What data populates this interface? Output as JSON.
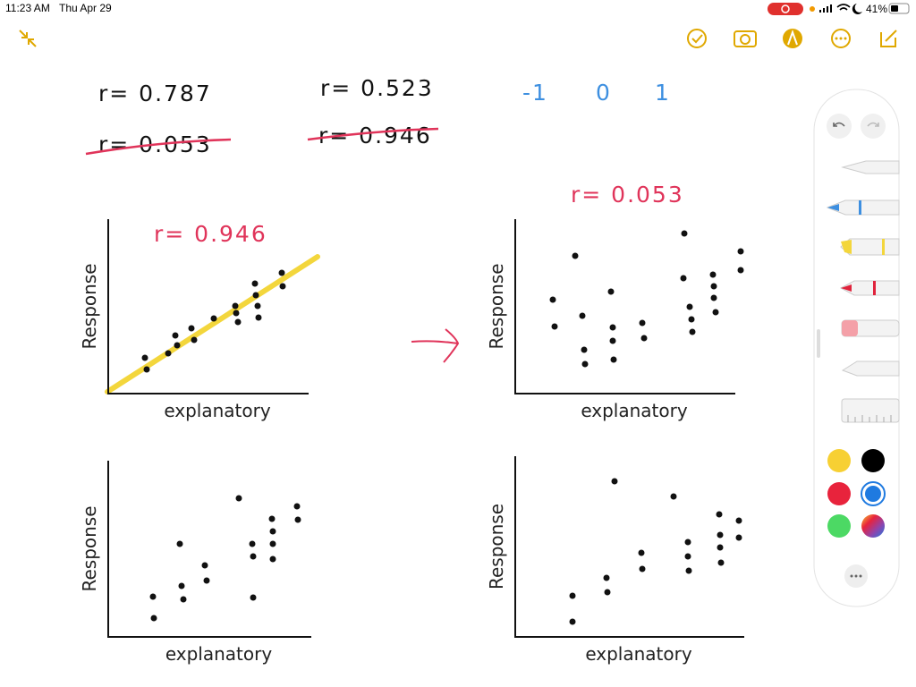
{
  "status_bar": {
    "time": "11:23 AM",
    "date": "Thu Apr 29",
    "battery": "41%"
  },
  "notes": {
    "r_values": [
      "r= 0.787",
      "r= 0.523"
    ],
    "crossed_out": [
      "r= 0.053",
      "r= 0.946"
    ],
    "scale": [
      "-1",
      "0",
      "1"
    ],
    "annotations": [
      "r= 0.946",
      "r= 0.053"
    ]
  },
  "plots": [
    {
      "y_label": "Response",
      "x_label": "explanatory"
    },
    {
      "y_label": "Response",
      "x_label": "explanatory"
    },
    {
      "y_label": "Response",
      "x_label": "explanatory"
    },
    {
      "y_label": "Response",
      "x_label": "explanatory"
    }
  ]
}
